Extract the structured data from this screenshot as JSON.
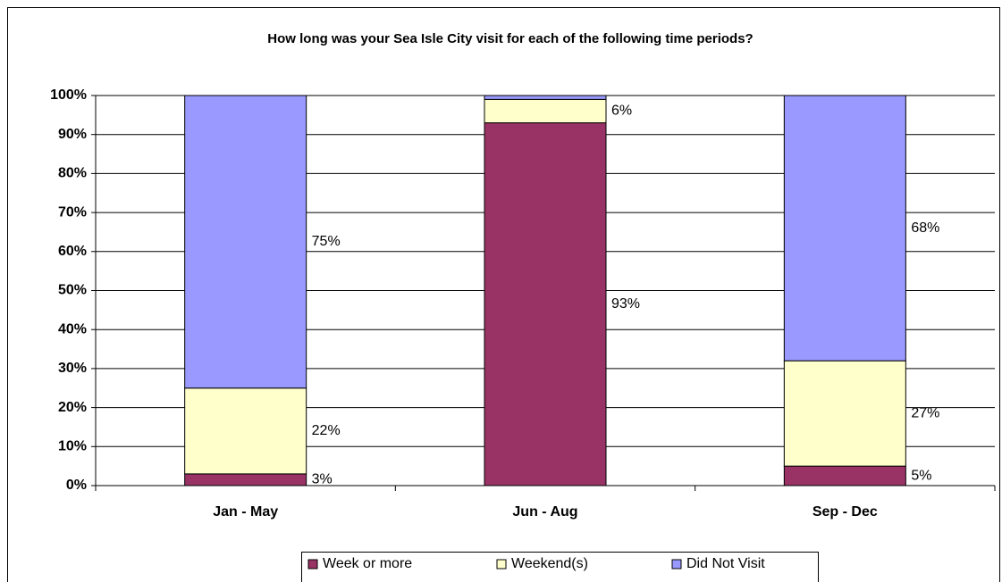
{
  "chart_data": {
    "type": "stacked_bar",
    "title": "How long was your Sea Isle City visit for each of the following time periods?",
    "categories": [
      "Jan - May",
      "Jun - Aug",
      "Sep - Dec"
    ],
    "series": [
      {
        "name": "Week or more",
        "color": "#993366",
        "values": [
          3,
          93,
          5
        ],
        "value_labels": [
          "3%",
          "93%",
          "5%"
        ]
      },
      {
        "name": "Weekend(s)",
        "color": "#ffffcc",
        "values": [
          22,
          6,
          27
        ],
        "value_labels": [
          "22%",
          "6%",
          "27%"
        ]
      },
      {
        "name": "Did Not Visit",
        "color": "#9999ff",
        "values": [
          75,
          1,
          68
        ],
        "value_labels": [
          "75%",
          null,
          "68%"
        ]
      }
    ],
    "ylim": [
      0,
      100
    ],
    "yticks": [
      {
        "value": 0,
        "label": "0%"
      },
      {
        "value": 10,
        "label": "10%"
      },
      {
        "value": 20,
        "label": "20%"
      },
      {
        "value": 30,
        "label": "30%"
      },
      {
        "value": 40,
        "label": "40%"
      },
      {
        "value": 50,
        "label": "50%"
      },
      {
        "value": 60,
        "label": "60%"
      },
      {
        "value": 70,
        "label": "70%"
      },
      {
        "value": 80,
        "label": "80%"
      },
      {
        "value": 90,
        "label": "90%"
      },
      {
        "value": 100,
        "label": "100%"
      }
    ],
    "grid": true,
    "legend": "bottom"
  }
}
